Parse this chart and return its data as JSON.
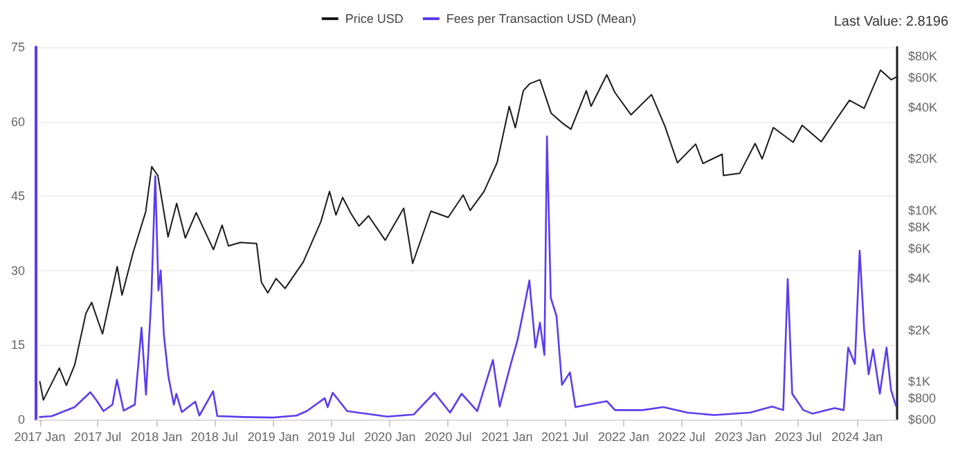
{
  "chart_data": {
    "type": "line",
    "legend": "top",
    "grid": "y",
    "marker": "none",
    "line_style": "solid",
    "log": "y2",
    "annotations": [
      "Last Value: 2.8196"
    ],
    "xlim": [
      "2016-12-20",
      "2024-05-05"
    ],
    "xticks": [
      {
        "value": "2017-01-01",
        "label": "2017 Jan"
      },
      {
        "value": "2017-07-01",
        "label": "2017 Jul"
      },
      {
        "value": "2018-01-01",
        "label": "2018 Jan"
      },
      {
        "value": "2018-07-01",
        "label": "2018 Jul"
      },
      {
        "value": "2019-01-01",
        "label": "2019 Jan"
      },
      {
        "value": "2019-07-01",
        "label": "2019 Jul"
      },
      {
        "value": "2020-01-01",
        "label": "2020 Jan"
      },
      {
        "value": "2020-07-01",
        "label": "2020 Jul"
      },
      {
        "value": "2021-01-01",
        "label": "2021 Jan"
      },
      {
        "value": "2021-07-01",
        "label": "2021 Jul"
      },
      {
        "value": "2022-01-01",
        "label": "2022 Jan"
      },
      {
        "value": "2022-07-01",
        "label": "2022 Jul"
      },
      {
        "value": "2023-01-01",
        "label": "2023 Jan"
      },
      {
        "value": "2023-07-01",
        "label": "2023 Jul"
      },
      {
        "value": "2024-01-01",
        "label": "2024 Jan"
      }
    ],
    "ylim": [
      0,
      75
    ],
    "yticks": [
      0,
      15,
      30,
      45,
      60,
      75
    ],
    "y2lim": [
      600,
      90000
    ],
    "y2ticks": [
      {
        "value": 600,
        "label": "$600"
      },
      {
        "value": 800,
        "label": "$800"
      },
      {
        "value": 1000,
        "label": "$1K"
      },
      {
        "value": 2000,
        "label": "$2K"
      },
      {
        "value": 4000,
        "label": "$4K"
      },
      {
        "value": 6000,
        "label": "$6K"
      },
      {
        "value": 8000,
        "label": "$8K"
      },
      {
        "value": 10000,
        "label": "$10K"
      },
      {
        "value": 20000,
        "label": "$20K"
      },
      {
        "value": 40000,
        "label": "$40K"
      },
      {
        "value": 60000,
        "label": "$60K"
      },
      {
        "value": 80000,
        "label": "$80K"
      }
    ],
    "series": [
      {
        "name": "Price USD",
        "color": "#1a1a1a",
        "axis": "y2",
        "x": [
          "2017-01-01",
          "2017-01-12",
          "2017-03-03",
          "2017-03-25",
          "2017-04-20",
          "2017-05-25",
          "2017-06-12",
          "2017-07-16",
          "2017-08-31",
          "2017-09-15",
          "2017-10-20",
          "2017-11-28",
          "2017-12-17",
          "2018-01-05",
          "2018-02-06",
          "2018-03-05",
          "2018-04-01",
          "2018-05-05",
          "2018-06-28",
          "2018-07-25",
          "2018-08-14",
          "2018-09-20",
          "2018-11-10",
          "2018-11-25",
          "2018-12-15",
          "2019-01-10",
          "2019-02-07",
          "2019-04-05",
          "2019-05-30",
          "2019-06-26",
          "2019-07-16",
          "2019-08-06",
          "2019-09-01",
          "2019-09-26",
          "2019-10-26",
          "2019-12-17",
          "2020-02-13",
          "2020-03-12",
          "2020-05-08",
          "2020-07-01",
          "2020-08-17",
          "2020-09-08",
          "2020-10-21",
          "2020-12-01",
          "2021-01-08",
          "2021-01-27",
          "2021-02-21",
          "2021-03-13",
          "2021-04-14",
          "2021-05-19",
          "2021-06-22",
          "2021-07-20",
          "2021-09-06",
          "2021-09-21",
          "2021-11-09",
          "2021-12-04",
          "2022-01-24",
          "2022-03-29",
          "2022-05-10",
          "2022-06-18",
          "2022-08-14",
          "2022-09-06",
          "2022-11-05",
          "2022-11-09",
          "2022-12-30",
          "2023-02-16",
          "2023-03-10",
          "2023-04-14",
          "2023-06-15",
          "2023-07-13",
          "2023-09-11",
          "2023-10-23",
          "2023-12-08",
          "2024-01-23",
          "2024-03-14",
          "2024-04-17",
          "2024-05-01"
        ],
        "values": [
          1000,
          780,
          1200,
          950,
          1250,
          2500,
          2900,
          1900,
          4700,
          3200,
          5700,
          9800,
          18000,
          16000,
          7000,
          11000,
          6900,
          9700,
          5900,
          8200,
          6200,
          6500,
          6400,
          3800,
          3300,
          4000,
          3500,
          5000,
          8600,
          12900,
          9400,
          11900,
          9600,
          8100,
          9300,
          6700,
          10300,
          4900,
          9900,
          9100,
          12300,
          10000,
          12900,
          19000,
          40500,
          30400,
          50000,
          55000,
          58000,
          37000,
          32500,
          29800,
          50000,
          40600,
          62000,
          49000,
          36200,
          47500,
          31000,
          19000,
          24400,
          18800,
          21300,
          16000,
          16500,
          24600,
          20000,
          30500,
          25000,
          31400,
          25200,
          33000,
          44000,
          39500,
          66000,
          58000,
          60000
        ]
      },
      {
        "name": "Fees per Transaction USD (Mean)",
        "color": "#5b3cf0",
        "x": [
          "2017-01-01",
          "2017-02-08",
          "2017-04-20",
          "2017-06-08",
          "2017-06-28",
          "2017-07-19",
          "2017-08-16",
          "2017-08-30",
          "2017-09-20",
          "2017-10-25",
          "2017-11-15",
          "2017-11-29",
          "2017-12-16",
          "2017-12-28",
          "2018-01-07",
          "2018-01-14",
          "2018-01-24",
          "2018-02-07",
          "2018-02-24",
          "2018-03-04",
          "2018-03-21",
          "2018-05-02",
          "2018-05-15",
          "2018-06-27",
          "2018-07-10",
          "2018-10-01",
          "2019-01-01",
          "2019-03-15",
          "2019-04-16",
          "2019-06-11",
          "2019-06-20",
          "2019-07-06",
          "2019-08-20",
          "2019-12-24",
          "2020-03-15",
          "2020-05-19",
          "2020-07-07",
          "2020-08-12",
          "2020-09-30",
          "2020-11-18",
          "2020-12-09",
          "2021-01-13",
          "2021-02-03",
          "2021-02-27",
          "2021-03-12",
          "2021-03-31",
          "2021-04-14",
          "2021-04-28",
          "2021-05-06",
          "2021-05-18",
          "2021-06-05",
          "2021-06-22",
          "2021-07-17",
          "2021-08-03",
          "2021-11-09",
          "2021-12-05",
          "2022-03-01",
          "2022-05-05",
          "2022-07-19",
          "2022-10-11",
          "2023-01-31",
          "2023-04-10",
          "2023-05-15",
          "2023-05-29",
          "2023-06-12",
          "2023-07-17",
          "2023-08-14",
          "2023-10-23",
          "2023-11-20",
          "2023-12-04",
          "2023-12-25",
          "2024-01-09",
          "2024-01-23",
          "2024-02-06",
          "2024-02-20",
          "2024-03-12",
          "2024-04-02",
          "2024-04-16",
          "2024-05-01"
        ],
        "values": [
          0.5,
          0.7,
          2.5,
          5.5,
          3.8,
          1.7,
          3,
          8,
          1.8,
          3,
          18.5,
          5,
          25,
          49,
          26,
          30,
          17,
          8.7,
          3,
          5.2,
          1.5,
          3.6,
          0.8,
          5.7,
          0.7,
          0.5,
          0.4,
          0.8,
          1.7,
          4.3,
          2.5,
          5.4,
          1.7,
          0.6,
          1,
          5.4,
          1.4,
          5.2,
          1.7,
          12,
          2.6,
          11.2,
          16,
          23.7,
          28,
          14.5,
          19.5,
          13,
          57,
          24.5,
          20.8,
          7,
          9.5,
          2.5,
          3.7,
          1.9,
          1.9,
          2.5,
          1.4,
          0.9,
          1.4,
          2.6,
          1.9,
          28.3,
          5.2,
          1.9,
          1.2,
          2.3,
          1.9,
          14.5,
          11.2,
          34,
          18,
          9.1,
          14.1,
          5.2,
          14.5,
          6,
          2.8
        ]
      }
    ]
  }
}
